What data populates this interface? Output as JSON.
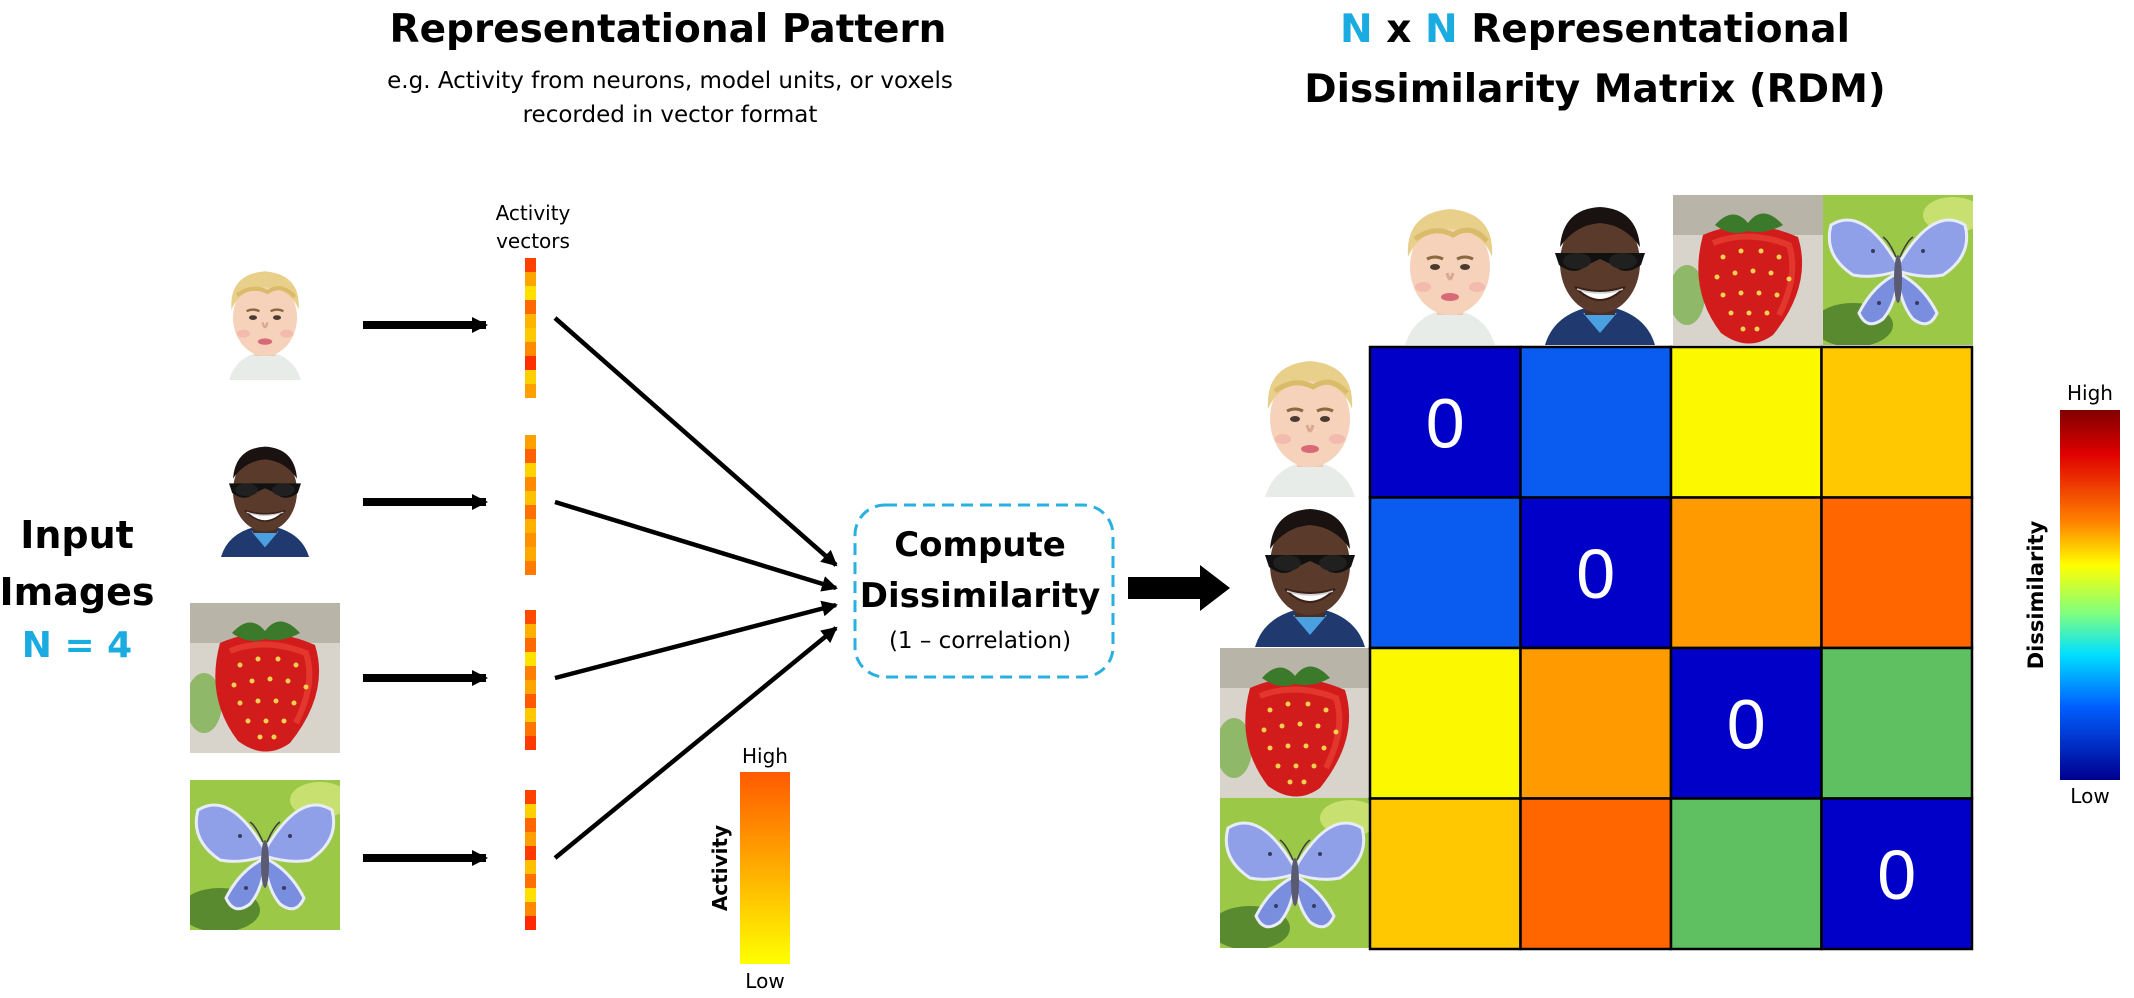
{
  "pattern": {
    "title": "Representational Pattern",
    "subtitle_line1": "e.g. Activity from neurons, model units, or voxels",
    "subtitle_line2": "recorded in vector format"
  },
  "rdm_title": {
    "n1": "N",
    "x": " x ",
    "n2": "N",
    "rest_line1": " Representational",
    "line2": "Dissimilarity Matrix (RDM)"
  },
  "input": {
    "line1": "Input",
    "line2": "Images",
    "count": "N = 4"
  },
  "activity_vectors_label": {
    "line1": "Activity",
    "line2": "vectors"
  },
  "compute": {
    "line1": "Compute",
    "line2": "Dissimilarity",
    "line3": "(1 – correlation)"
  },
  "activity_colorbar": {
    "label": "Activity",
    "high": "High",
    "low": "Low",
    "top_color": "#ff5a00",
    "bottom_color": "#ffff00"
  },
  "dissimilarity_colorbar": {
    "label": "Dissimilarity",
    "high": "High",
    "low": "Low"
  },
  "stimuli": [
    {
      "name": "child-face",
      "icon": "child-face-image"
    },
    {
      "name": "man-face",
      "icon": "man-face-image"
    },
    {
      "name": "strawberry",
      "icon": "strawberry-image"
    },
    {
      "name": "butterfly",
      "icon": "butterfly-image"
    }
  ],
  "vectors": [
    [
      "#ff4000",
      "#ffa500",
      "#ffe000",
      "#ff6a00",
      "#ffb400",
      "#ffc800",
      "#ff8c00",
      "#ff3000",
      "#ffd000",
      "#ffa000"
    ],
    [
      "#ffa000",
      "#ff6000",
      "#ffd200",
      "#ff8a00",
      "#ffc000",
      "#ff7000",
      "#ffb000",
      "#ff9000",
      "#ffa800",
      "#ff7a00"
    ],
    [
      "#ff4a00",
      "#ffb000",
      "#ff6a00",
      "#ffe200",
      "#ff8000",
      "#ffa400",
      "#ff5a00",
      "#ffc800",
      "#ff7400",
      "#ff3a00"
    ],
    [
      "#ff4000",
      "#ffd000",
      "#ff6600",
      "#ffa000",
      "#ff3a00",
      "#ffc000",
      "#ff7000",
      "#ffe000",
      "#ff8800",
      "#ff2a00"
    ]
  ],
  "rdm": {
    "cells": [
      [
        {
          "color": "#0000c8",
          "label": "0"
        },
        {
          "color": "#0a5cf0",
          "label": ""
        },
        {
          "color": "#fbf800",
          "label": ""
        },
        {
          "color": "#ffc800",
          "label": ""
        }
      ],
      [
        {
          "color": "#0a5cf0",
          "label": ""
        },
        {
          "color": "#0000c8",
          "label": "0"
        },
        {
          "color": "#ff9a00",
          "label": ""
        },
        {
          "color": "#ff6600",
          "label": ""
        }
      ],
      [
        {
          "color": "#fbf800",
          "label": ""
        },
        {
          "color": "#ff9a00",
          "label": ""
        },
        {
          "color": "#0000c8",
          "label": "0"
        },
        {
          "color": "#5ec060",
          "label": ""
        }
      ],
      [
        {
          "color": "#ffc800",
          "label": ""
        },
        {
          "color": "#ff6600",
          "label": ""
        },
        {
          "color": "#5ec060",
          "label": ""
        },
        {
          "color": "#0000c8",
          "label": "0"
        }
      ]
    ]
  },
  "colors": {
    "accent_blue": "#1aabe0",
    "dashed_box": "#2ab0e0",
    "grid_line": "#000000"
  }
}
